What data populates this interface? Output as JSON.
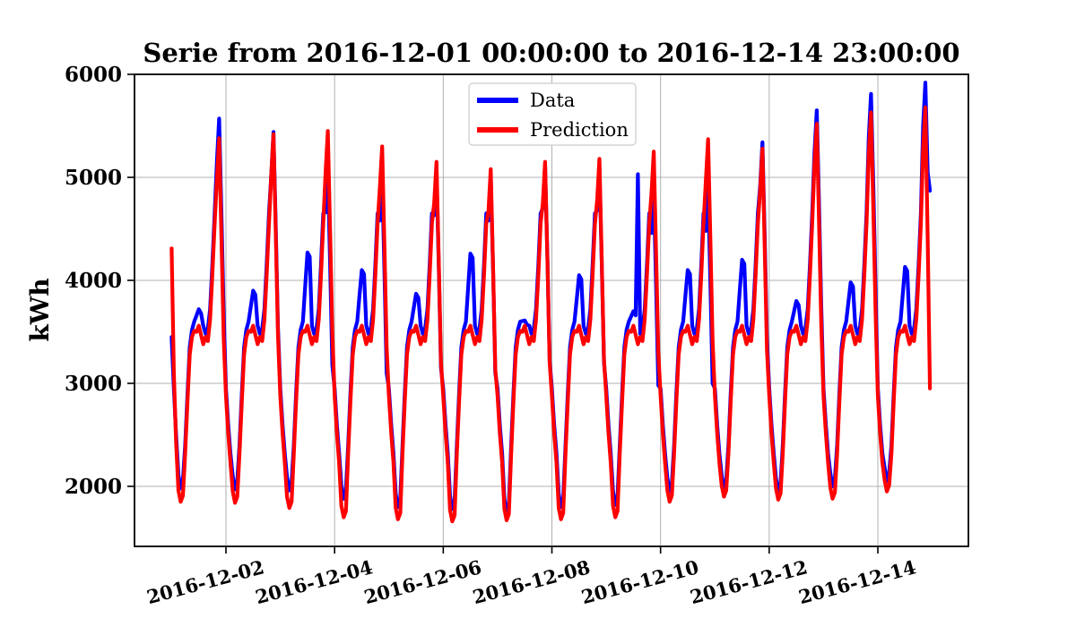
{
  "chart_data": {
    "type": "line",
    "title": "Serie from 2016-12-01 00:00:00 to 2016-12-14 23:00:00",
    "ylabel": "kWh",
    "xlabel": "",
    "x_start": "2016-12-01 00:00:00",
    "x_end": "2016-12-14 23:00:00",
    "x_freq": "1 hour",
    "n_points": 336,
    "x_unit": "hours since 2016-12-01 00:00:00",
    "xlim_hours": [
      -16.4,
      352.0
    ],
    "ylim": [
      1417,
      6000
    ],
    "grid": true,
    "legend_position": "upper center",
    "yticks": [
      2000,
      3000,
      4000,
      5000,
      6000
    ],
    "xticks": {
      "hours": [
        24,
        72,
        120,
        168,
        216,
        264,
        312
      ],
      "labels": [
        "2016-12-02",
        "2016-12-04",
        "2016-12-06",
        "2016-12-08",
        "2016-12-10",
        "2016-12-12",
        "2016-12-14"
      ]
    },
    "series": [
      {
        "name": "Data",
        "color": "#0000ff",
        "values": [
          3450,
          2950,
          2500,
          2110,
          1980,
          2060,
          2400,
          2900,
          3350,
          3520,
          3600,
          3660,
          3720,
          3680,
          3560,
          3480,
          3530,
          3720,
          4150,
          4650,
          5150,
          5570,
          4670,
          3670,
          2950,
          2600,
          2320,
          2100,
          1970,
          2050,
          2400,
          2900,
          3350,
          3520,
          3600,
          3750,
          3900,
          3860,
          3560,
          3480,
          3530,
          3720,
          4150,
          4650,
          5020,
          5440,
          4540,
          3540,
          2950,
          2600,
          2320,
          2090,
          1960,
          2040,
          2400,
          2900,
          3350,
          3520,
          3600,
          3935,
          4270,
          4230,
          3560,
          3480,
          3530,
          3720,
          4150,
          4650,
          4660,
          5080,
          4180,
          3180,
          2950,
          2600,
          2320,
          2010,
          1880,
          1960,
          2400,
          2900,
          3350,
          3520,
          3600,
          3850,
          4100,
          4060,
          3560,
          3480,
          3530,
          3720,
          4150,
          4650,
          4580,
          5000,
          4100,
          3100,
          2950,
          2600,
          2320,
          1930,
          1800,
          1880,
          2400,
          2900,
          3350,
          3520,
          3600,
          3735,
          3870,
          3830,
          3560,
          3480,
          3530,
          3720,
          4150,
          4650,
          4630,
          5050,
          4150,
          3150,
          2950,
          2600,
          2320,
          1910,
          1780,
          1860,
          2400,
          2900,
          3350,
          3520,
          3600,
          3930,
          4260,
          4220,
          3560,
          3480,
          3530,
          3720,
          4150,
          4650,
          4580,
          5000,
          4100,
          3100,
          2950,
          2600,
          2320,
          1880,
          1750,
          1830,
          2400,
          2900,
          3350,
          3520,
          3600,
          3605,
          3610,
          3570,
          3560,
          3480,
          3530,
          3720,
          4150,
          4650,
          4700,
          5120,
          4220,
          3220,
          2950,
          2600,
          2320,
          1930,
          1800,
          1880,
          2400,
          2900,
          3350,
          3520,
          3600,
          3825,
          4050,
          4010,
          3560,
          3480,
          3530,
          3720,
          4150,
          4650,
          4680,
          5100,
          4200,
          3200,
          2950,
          2600,
          2320,
          1950,
          1820,
          1900,
          2400,
          2900,
          3350,
          3520,
          3600,
          3650,
          3700,
          3660,
          5030,
          3480,
          3530,
          3720,
          4150,
          4650,
          4460,
          4880,
          3980,
          2980,
          2950,
          2600,
          2320,
          2080,
          1950,
          2030,
          2400,
          2900,
          3350,
          3520,
          3600,
          3850,
          4100,
          4060,
          3560,
          3480,
          3530,
          3720,
          4150,
          4650,
          4480,
          4900,
          4000,
          3000,
          2950,
          2600,
          2320,
          2110,
          1980,
          2060,
          2400,
          2900,
          3350,
          3520,
          3600,
          3900,
          4200,
          4160,
          3560,
          3480,
          3530,
          3720,
          4150,
          4650,
          4920,
          5340,
          4440,
          3440,
          2950,
          2600,
          2320,
          2080,
          1950,
          2030,
          2400,
          2900,
          3350,
          3520,
          3600,
          3700,
          3800,
          3760,
          3560,
          3480,
          3530,
          3720,
          4150,
          4650,
          5230,
          5650,
          4750,
          3750,
          2950,
          2600,
          2320,
          2130,
          2000,
          2080,
          2400,
          2900,
          3350,
          3520,
          3600,
          3790,
          3980,
          3940,
          3560,
          3480,
          3530,
          3720,
          4150,
          4650,
          5390,
          5810,
          4910,
          3910,
          2950,
          2600,
          2320,
          2180,
          2050,
          2130,
          2400,
          2900,
          3350,
          3520,
          3600,
          3865,
          4130,
          4090,
          3560,
          3480,
          3530,
          3720,
          4150,
          4650,
          5500,
          5920,
          5050,
          4870
        ]
      },
      {
        "name": "Prediction",
        "color": "#ff0000",
        "values": [
          4310,
          3100,
          2420,
          1960,
          1850,
          1910,
          2320,
          2820,
          3280,
          3450,
          3510,
          3500,
          3560,
          3470,
          3380,
          3450,
          3410,
          3620,
          4050,
          4550,
          4980,
          5380,
          4430,
          3430,
          2880,
          2520,
          2230,
          1950,
          1840,
          1900,
          2320,
          2820,
          3280,
          3450,
          3510,
          3500,
          3560,
          3470,
          3380,
          3450,
          3410,
          3620,
          4050,
          4550,
          5020,
          5420,
          4470,
          3470,
          2880,
          2520,
          2230,
          1900,
          1790,
          1850,
          2320,
          2820,
          3280,
          3450,
          3510,
          3500,
          3560,
          3470,
          3380,
          3450,
          3410,
          3620,
          4050,
          4550,
          5050,
          5450,
          4500,
          3500,
          2880,
          2520,
          2230,
          1810,
          1700,
          1760,
          2320,
          2820,
          3280,
          3450,
          3510,
          3500,
          3560,
          3470,
          3380,
          3450,
          3410,
          3620,
          4050,
          4550,
          4900,
          5300,
          4350,
          3350,
          2880,
          2520,
          2230,
          1790,
          1680,
          1740,
          2320,
          2820,
          3280,
          3450,
          3510,
          3500,
          3560,
          3470,
          3380,
          3450,
          3410,
          3620,
          4050,
          4550,
          4750,
          5150,
          4200,
          3200,
          2880,
          2520,
          2230,
          1770,
          1660,
          1720,
          2320,
          2820,
          3280,
          3450,
          3510,
          3500,
          3560,
          3470,
          3380,
          3450,
          3410,
          3620,
          4050,
          4550,
          4680,
          5080,
          4130,
          3130,
          2880,
          2520,
          2230,
          1780,
          1670,
          1730,
          2320,
          2820,
          3280,
          3450,
          3510,
          3500,
          3560,
          3470,
          3380,
          3450,
          3410,
          3620,
          4050,
          4550,
          4750,
          5150,
          4200,
          3200,
          2880,
          2520,
          2230,
          1790,
          1680,
          1740,
          2320,
          2820,
          3280,
          3450,
          3510,
          3500,
          3560,
          3470,
          3380,
          3450,
          3410,
          3620,
          4050,
          4550,
          4780,
          5180,
          4230,
          3230,
          2880,
          2520,
          2230,
          1810,
          1700,
          1760,
          2320,
          2820,
          3280,
          3450,
          3510,
          3500,
          3560,
          3470,
          3380,
          3450,
          3410,
          3620,
          4050,
          4550,
          4850,
          5250,
          4300,
          3300,
          2880,
          2520,
          2230,
          1960,
          1850,
          1910,
          2320,
          2820,
          3280,
          3450,
          3510,
          3500,
          3560,
          3470,
          3380,
          3450,
          3410,
          3620,
          4050,
          4550,
          4970,
          5370,
          4420,
          3420,
          2880,
          2520,
          2230,
          2010,
          1900,
          1960,
          2320,
          2820,
          3280,
          3450,
          3510,
          3500,
          3560,
          3470,
          3380,
          3450,
          3410,
          3620,
          4050,
          4550,
          4880,
          5280,
          4330,
          3330,
          2880,
          2520,
          2230,
          1980,
          1870,
          1930,
          2320,
          2820,
          3280,
          3450,
          3510,
          3500,
          3560,
          3470,
          3380,
          3450,
          3410,
          3620,
          4050,
          4550,
          5120,
          5520,
          4570,
          3570,
          2880,
          2520,
          2230,
          1990,
          1880,
          1940,
          2320,
          2820,
          3280,
          3450,
          3510,
          3500,
          3560,
          3470,
          3380,
          3450,
          3410,
          3620,
          4050,
          4550,
          5230,
          5630,
          4680,
          3680,
          2880,
          2520,
          2230,
          2060,
          1950,
          2010,
          2320,
          2820,
          3280,
          3450,
          3510,
          3500,
          3560,
          3470,
          3380,
          3450,
          3410,
          3620,
          4050,
          4550,
          5280,
          5680,
          4400,
          2950
        ]
      }
    ],
    "style": {
      "grid_color": "#b0b0b0",
      "spine_color": "#000000",
      "background": "#ffffff",
      "line_width": 4.2
    }
  }
}
